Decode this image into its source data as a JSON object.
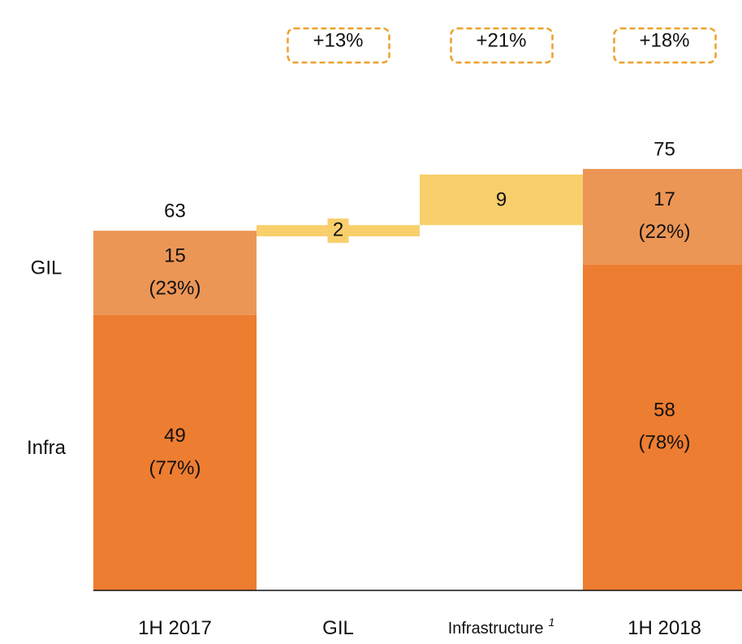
{
  "chart_data": {
    "type": "waterfall",
    "categories": [
      "1H 2017",
      "GIL",
      "Infrastructure",
      "1H 2018"
    ],
    "category_footnotes": [
      null,
      null,
      "1",
      null
    ],
    "series": [
      {
        "name": "Infra",
        "color": "#ed7d31",
        "values": [
          49,
          null,
          null,
          58
        ],
        "share_labels": [
          "(77%)",
          null,
          null,
          "(78%)"
        ]
      },
      {
        "name": "GIL",
        "color": "#ec9656",
        "values": [
          15,
          null,
          null,
          17
        ],
        "share_labels": [
          "(23%)",
          null,
          null,
          "(22%)"
        ]
      }
    ],
    "deltas": {
      "color": "#f9cf6c",
      "values": [
        null,
        2,
        9,
        null
      ]
    },
    "totals": [
      63,
      null,
      null,
      75
    ],
    "growth_labels": [
      null,
      "+13%",
      "+21%",
      "+18%"
    ],
    "growth_box_color": "#eda02b"
  }
}
